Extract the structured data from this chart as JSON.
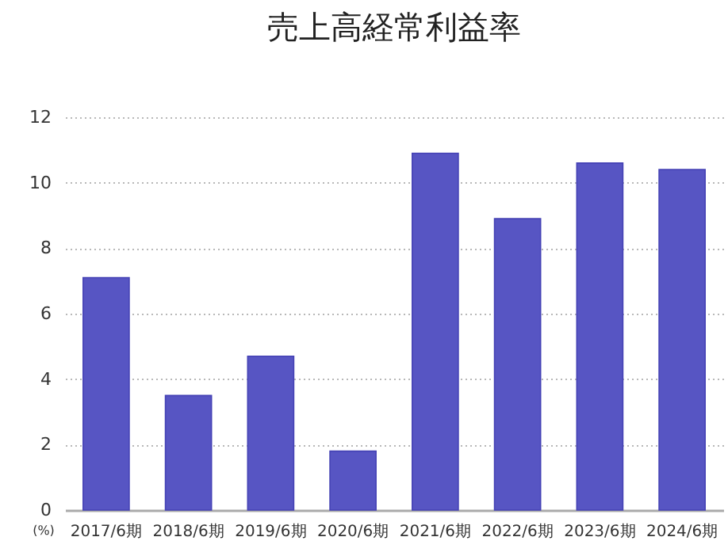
{
  "chart_data": {
    "type": "bar",
    "title": "売上高経常利益率",
    "ylabel": "(%)",
    "categories": [
      "2017/6期",
      "2018/6期",
      "2019/6期",
      "2020/6期",
      "2021/6期",
      "2022/6期",
      "2023/6期",
      "2024/6期"
    ],
    "values": [
      7.1,
      3.5,
      4.7,
      1.8,
      10.9,
      8.9,
      10.6,
      10.4
    ],
    "color": "#5755c3",
    "ylim": [
      0,
      12
    ],
    "yticks": [
      0,
      2,
      4,
      6,
      8,
      10,
      12
    ],
    "grid": "y"
  }
}
